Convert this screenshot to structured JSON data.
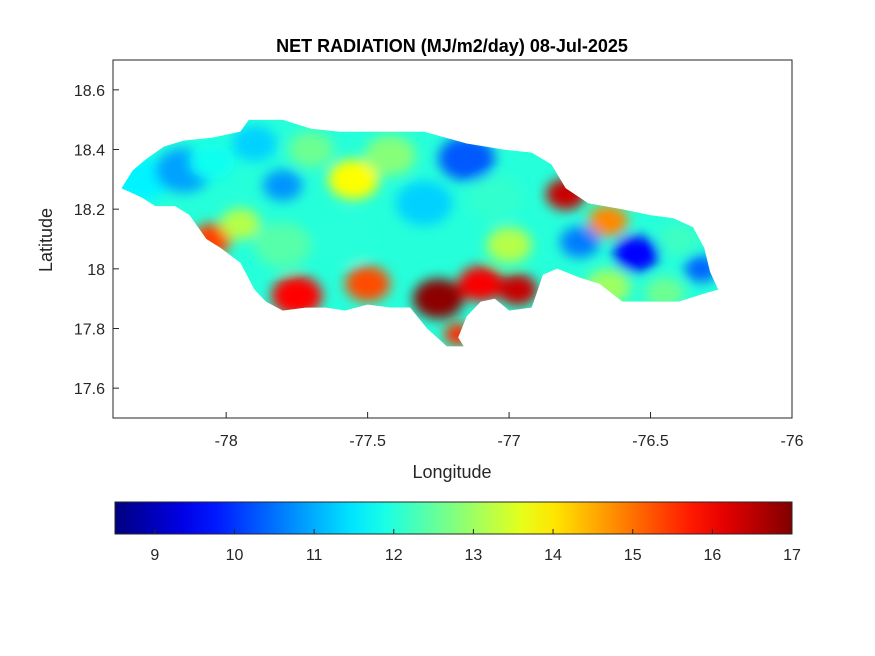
{
  "title": "NET RADIATION (MJ/m2/day) 08-Jul-2025",
  "chart_data": {
    "type": "heatmap",
    "title": "NET RADIATION (MJ/m2/day) 08-Jul-2025",
    "xlabel": "Longitude",
    "ylabel": "Latitude",
    "xlim": [
      -78.4,
      -76.0
    ],
    "ylim": [
      17.5,
      18.7
    ],
    "xticks": [
      -78,
      -77.5,
      -77,
      -76.5,
      -76
    ],
    "xtick_labels": [
      "-78",
      "-77.5",
      "-77",
      "-76.5",
      "-76"
    ],
    "yticks": [
      17.6,
      17.8,
      18,
      18.2,
      18.4,
      18.6
    ],
    "ytick_labels": [
      "17.6",
      "17.8",
      "18",
      "18.2",
      "18.4",
      "18.6"
    ],
    "grid": false,
    "colormap": "jet",
    "colorbar": {
      "location": "bottom",
      "range": [
        8.5,
        17
      ],
      "ticks": [
        9,
        10,
        11,
        12,
        13,
        14,
        15,
        16,
        17
      ],
      "tick_labels": [
        "9",
        "10",
        "11",
        "12",
        "13",
        "14",
        "15",
        "16",
        "17"
      ]
    },
    "outline_lonlat": [
      [
        -78.37,
        18.27
      ],
      [
        -78.33,
        18.33
      ],
      [
        -78.28,
        18.37
      ],
      [
        -78.22,
        18.41
      ],
      [
        -78.15,
        18.43
      ],
      [
        -78.05,
        18.44
      ],
      [
        -77.95,
        18.46
      ],
      [
        -77.92,
        18.5
      ],
      [
        -77.8,
        18.5
      ],
      [
        -77.7,
        18.47
      ],
      [
        -77.6,
        18.46
      ],
      [
        -77.45,
        18.46
      ],
      [
        -77.3,
        18.46
      ],
      [
        -77.15,
        18.42
      ],
      [
        -77.02,
        18.4
      ],
      [
        -76.92,
        18.39
      ],
      [
        -76.85,
        18.35
      ],
      [
        -76.8,
        18.27
      ],
      [
        -76.72,
        18.22
      ],
      [
        -76.6,
        18.2
      ],
      [
        -76.5,
        18.18
      ],
      [
        -76.42,
        18.17
      ],
      [
        -76.35,
        18.14
      ],
      [
        -76.31,
        18.07
      ],
      [
        -76.29,
        17.99
      ],
      [
        -76.26,
        17.93
      ],
      [
        -76.3,
        17.92
      ],
      [
        -76.4,
        17.89
      ],
      [
        -76.5,
        17.89
      ],
      [
        -76.6,
        17.89
      ],
      [
        -76.68,
        17.95
      ],
      [
        -76.75,
        17.97
      ],
      [
        -76.83,
        18.0
      ],
      [
        -76.88,
        17.98
      ],
      [
        -76.92,
        17.87
      ],
      [
        -77.0,
        17.86
      ],
      [
        -77.05,
        17.9
      ],
      [
        -77.1,
        17.89
      ],
      [
        -77.15,
        17.84
      ],
      [
        -77.18,
        17.77
      ],
      [
        -77.16,
        17.74
      ],
      [
        -77.22,
        17.74
      ],
      [
        -77.29,
        17.8
      ],
      [
        -77.35,
        17.87
      ],
      [
        -77.42,
        17.87
      ],
      [
        -77.5,
        17.88
      ],
      [
        -77.58,
        17.86
      ],
      [
        -77.65,
        17.87
      ],
      [
        -77.72,
        17.87
      ],
      [
        -77.8,
        17.86
      ],
      [
        -77.86,
        17.89
      ],
      [
        -77.9,
        17.93
      ],
      [
        -77.95,
        18.02
      ],
      [
        -78.02,
        18.07
      ],
      [
        -78.07,
        18.1
      ],
      [
        -78.13,
        18.18
      ],
      [
        -78.18,
        18.21
      ],
      [
        -78.25,
        18.21
      ],
      [
        -78.3,
        18.24
      ]
    ],
    "value_centers": [
      {
        "lon": -78.3,
        "lat": 18.3,
        "value": 11.6,
        "r": 0.1
      },
      {
        "lon": -78.15,
        "lat": 18.33,
        "value": 10.9,
        "r": 0.1
      },
      {
        "lon": -78.05,
        "lat": 18.36,
        "value": 11.8,
        "r": 0.08
      },
      {
        "lon": -77.9,
        "lat": 18.42,
        "value": 11.3,
        "r": 0.08
      },
      {
        "lon": -77.8,
        "lat": 18.28,
        "value": 10.8,
        "r": 0.07
      },
      {
        "lon": -77.7,
        "lat": 18.4,
        "value": 12.6,
        "r": 0.08
      },
      {
        "lon": -77.55,
        "lat": 18.3,
        "value": 13.8,
        "r": 0.09
      },
      {
        "lon": -77.42,
        "lat": 18.38,
        "value": 12.8,
        "r": 0.09
      },
      {
        "lon": -77.15,
        "lat": 18.37,
        "value": 10.3,
        "r": 0.1
      },
      {
        "lon": -77.3,
        "lat": 18.22,
        "value": 11.3,
        "r": 0.1
      },
      {
        "lon": -77.05,
        "lat": 18.24,
        "value": 12.1,
        "r": 0.1
      },
      {
        "lon": -78.05,
        "lat": 18.1,
        "value": 15.4,
        "r": 0.07
      },
      {
        "lon": -77.95,
        "lat": 18.15,
        "value": 13.2,
        "r": 0.07
      },
      {
        "lon": -77.8,
        "lat": 18.08,
        "value": 12.4,
        "r": 0.1
      },
      {
        "lon": -77.58,
        "lat": 18.1,
        "value": 12.0,
        "r": 0.1
      },
      {
        "lon": -77.75,
        "lat": 17.91,
        "value": 15.9,
        "r": 0.09
      },
      {
        "lon": -77.5,
        "lat": 17.95,
        "value": 15.3,
        "r": 0.08
      },
      {
        "lon": -77.25,
        "lat": 17.9,
        "value": 16.9,
        "r": 0.09
      },
      {
        "lon": -77.1,
        "lat": 17.95,
        "value": 16.0,
        "r": 0.08
      },
      {
        "lon": -76.97,
        "lat": 17.93,
        "value": 16.4,
        "r": 0.07
      },
      {
        "lon": -77.18,
        "lat": 17.78,
        "value": 15.6,
        "r": 0.05
      },
      {
        "lon": -77.0,
        "lat": 18.08,
        "value": 13.2,
        "r": 0.08
      },
      {
        "lon": -76.8,
        "lat": 18.25,
        "value": 16.4,
        "r": 0.07
      },
      {
        "lon": -76.65,
        "lat": 18.16,
        "value": 14.8,
        "r": 0.07
      },
      {
        "lon": -76.75,
        "lat": 18.09,
        "value": 10.6,
        "r": 0.07
      },
      {
        "lon": -76.55,
        "lat": 18.05,
        "value": 9.6,
        "r": 0.08
      },
      {
        "lon": -76.4,
        "lat": 18.1,
        "value": 12.2,
        "r": 0.07
      },
      {
        "lon": -76.32,
        "lat": 18.0,
        "value": 10.4,
        "r": 0.06
      },
      {
        "lon": -76.65,
        "lat": 17.94,
        "value": 13.0,
        "r": 0.08
      },
      {
        "lon": -76.45,
        "lat": 17.92,
        "value": 12.6,
        "r": 0.07
      }
    ]
  }
}
